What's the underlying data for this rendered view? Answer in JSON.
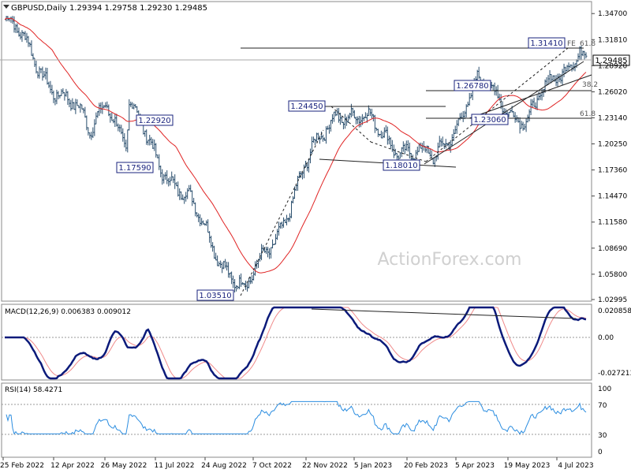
{
  "colors": {
    "bar": "#2b4f6e",
    "ma": "#e02424",
    "macd": "#0b1a7a",
    "signal": "#f08a8a",
    "rsi": "#2b8de0",
    "grid": "#999999",
    "label_border": "#1a237e"
  },
  "header": {
    "symbol": "GBPUSD,Daily",
    "ohlc": "1.29394 1.29758 1.29230 1.29485"
  },
  "watermark": "ActionForex.com",
  "price_axis_ticks": [
    "1.34700",
    "1.31810",
    "1.28920",
    "1.26020",
    "1.23140",
    "1.20250",
    "1.17360",
    "1.14470",
    "1.11580",
    "1.08690",
    "1.05800",
    "1.02995"
  ],
  "current_price_label": "1.29485",
  "date_labels": [
    "25 Feb 2022",
    "12 Apr 2022",
    "26 May 2022",
    "11 Jul 2022",
    "24 Aug 2022",
    "7 Oct 2022",
    "22 Nov 2022",
    "5 Jan 2023",
    "20 Feb 2023",
    "5 Apr 2023",
    "19 May 2023",
    "4 Jul 2023"
  ],
  "annotations": [
    "1.31410",
    "1.29485",
    "1.26780",
    "1.24450",
    "1.22920",
    "1.23060",
    "1.17590",
    "1.18010",
    "1.03510"
  ],
  "fib_labels": [
    "61.8",
    "38.2",
    "61.8",
    "FE"
  ],
  "macd": {
    "label": "MACD(12,26,9) 0.006383 0.009012",
    "ticks": [
      "0.020858",
      "0.00",
      "-0.027213"
    ]
  },
  "rsi": {
    "label": "RSI(14) 58.4271",
    "ticks": [
      "100",
      "70",
      "30",
      "0"
    ]
  },
  "chart_data": {
    "type": "bar",
    "title": "GBPUSD,Daily",
    "x_range": [
      "2022-02-25",
      "2023-07-21"
    ],
    "y_range": [
      1.0299,
      1.3533
    ],
    "key_points": [
      {
        "date": "2022-02-25",
        "close": 1.345
      },
      {
        "date": "2022-05-13",
        "low": 1.2157
      },
      {
        "date": "2022-05-27",
        "high": 1.2599
      },
      {
        "date": "2022-06-14",
        "low": 1.1934
      },
      {
        "date": "2022-06-16",
        "high": 1.2406
      },
      {
        "date": "2022-09-26",
        "low": 1.0351
      },
      {
        "date": "2022-12-14",
        "high": 1.2445
      },
      {
        "date": "2023-03-08",
        "low": 1.1801
      },
      {
        "date": "2023-04-14",
        "high": 1.2678
      },
      {
        "date": "2023-05-31",
        "low": 1.2306
      },
      {
        "date": "2023-07-14",
        "high": 1.3141
      },
      {
        "date": "2023-07-21",
        "close": 1.29485
      }
    ],
    "moving_average": "red line",
    "indicators": {
      "macd": {
        "params": "12,26,9",
        "value": 0.006383,
        "signal": 0.009012
      },
      "rsi": {
        "period": 14,
        "value": 58.4271,
        "levels": [
          70,
          30
        ]
      }
    }
  }
}
